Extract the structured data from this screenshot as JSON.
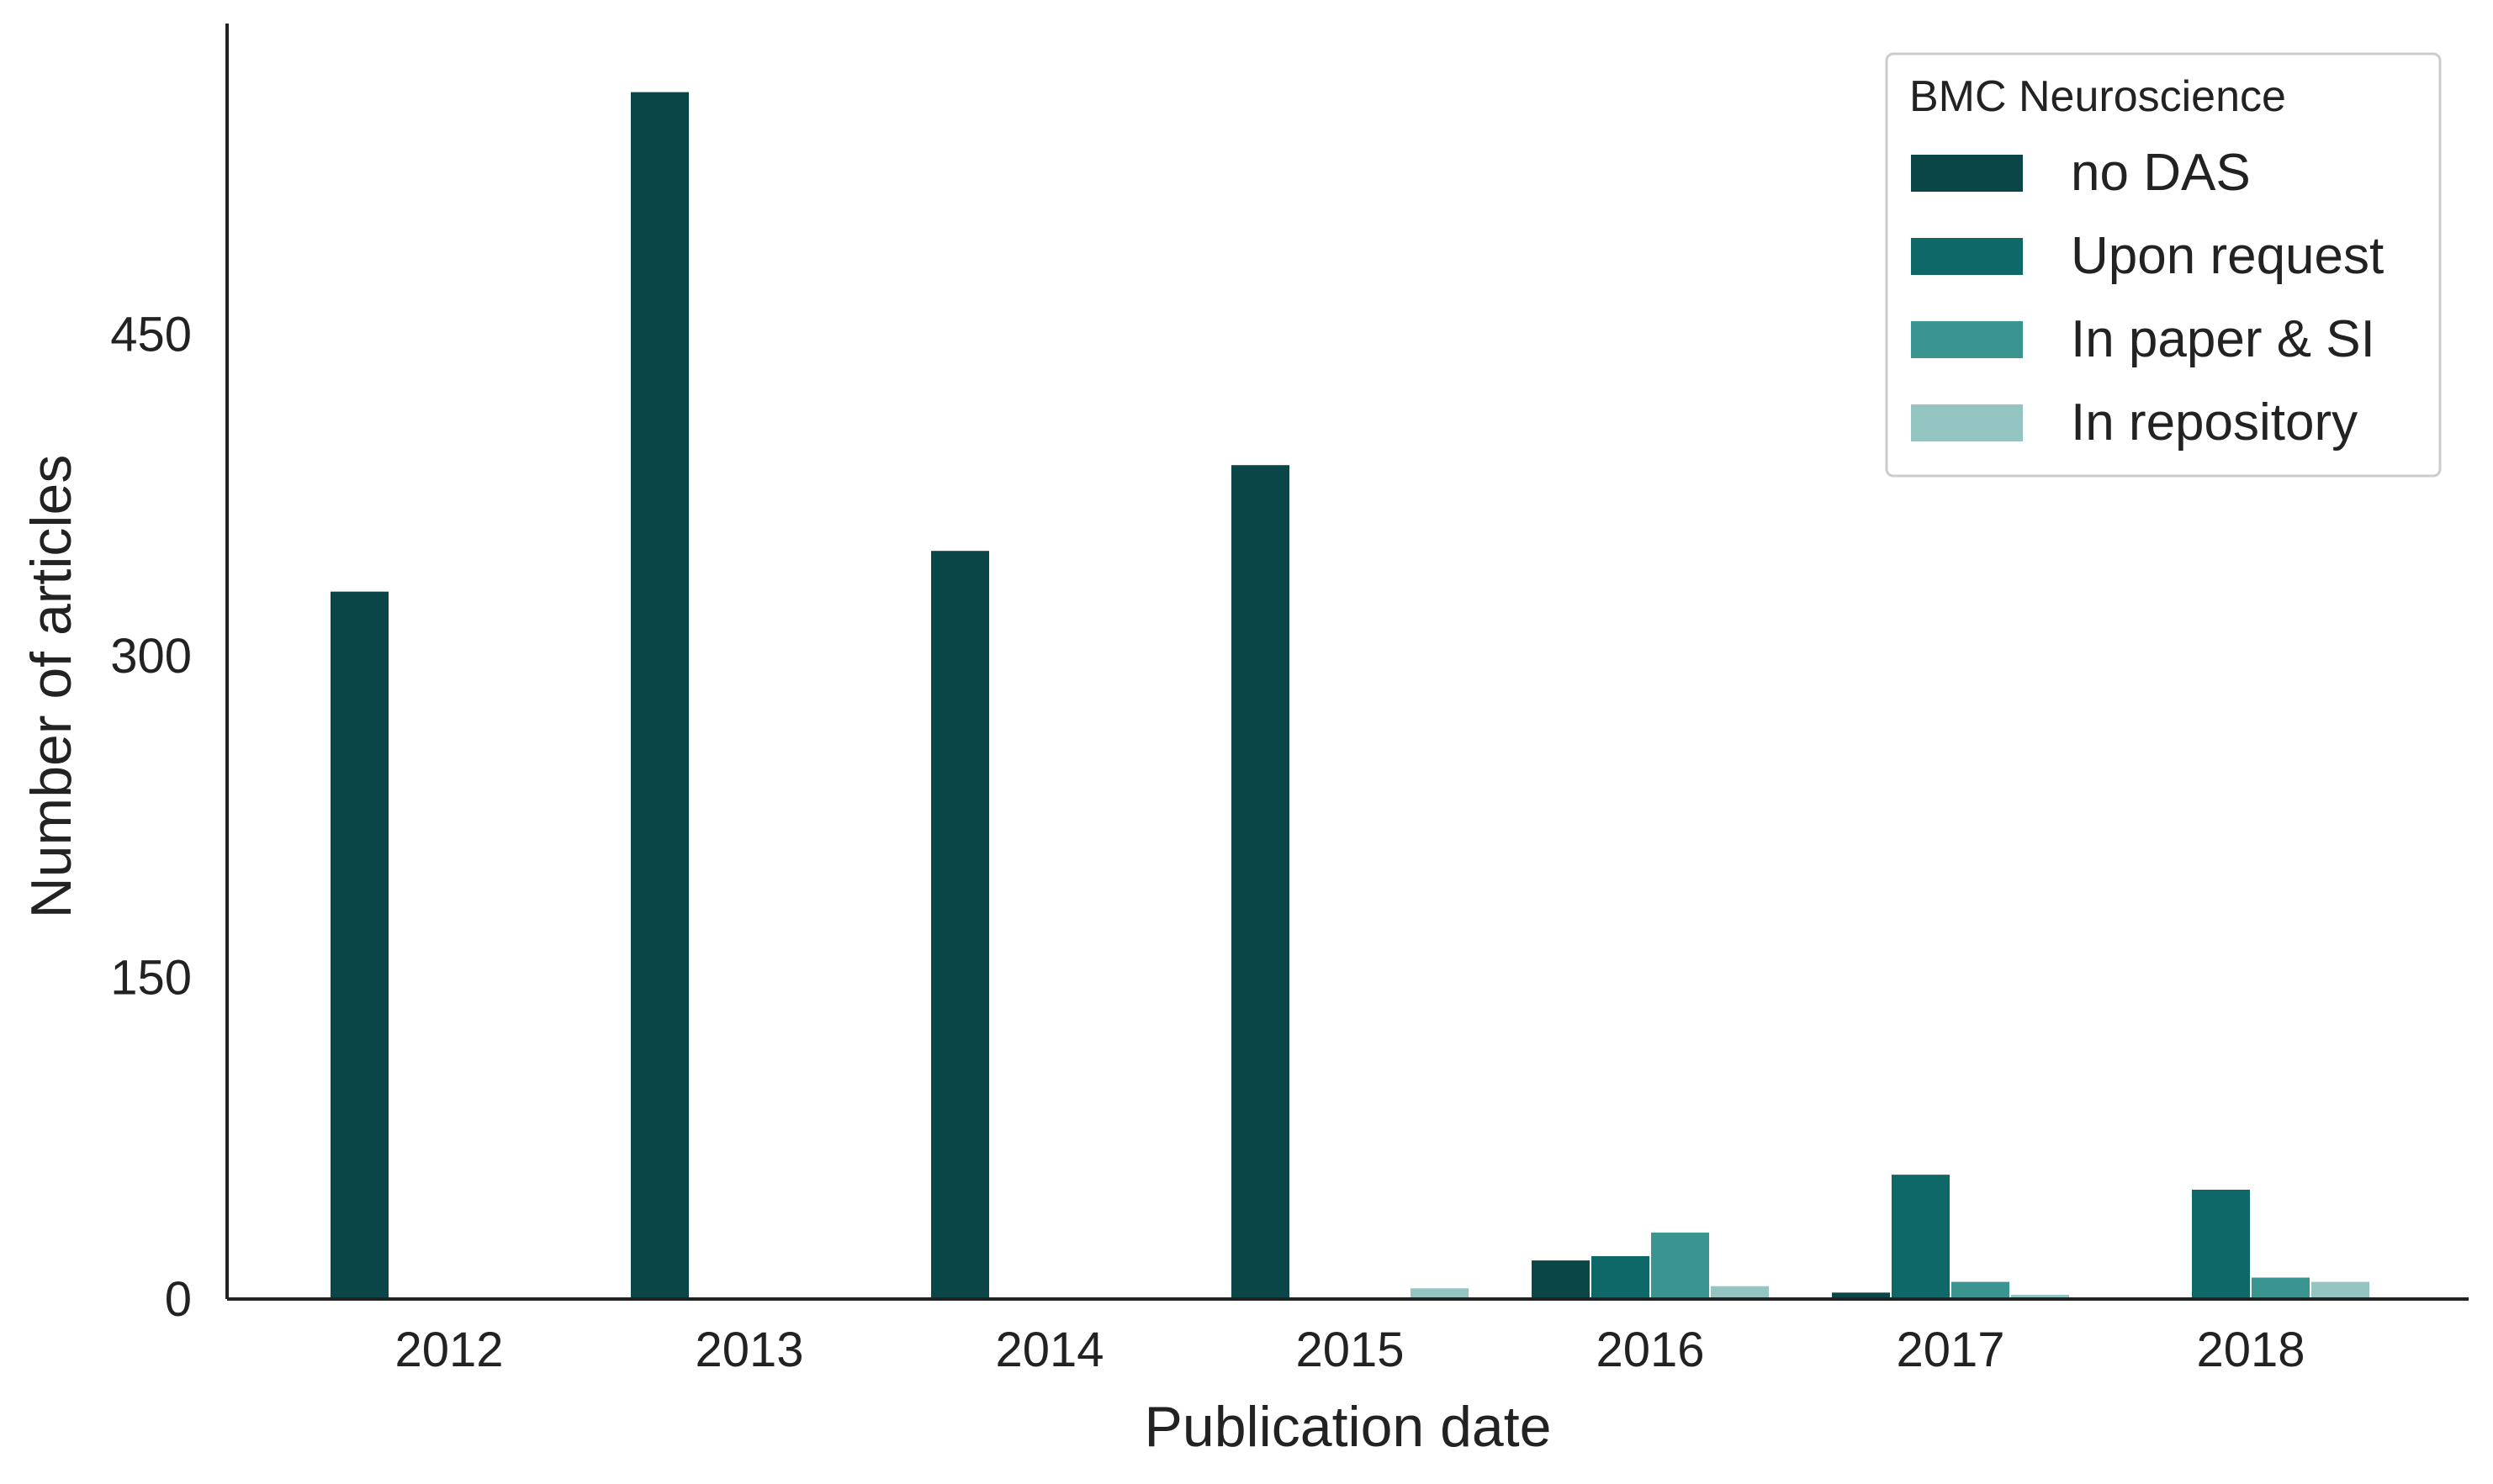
{
  "chart_data": {
    "type": "bar",
    "title": "",
    "xlabel": "Publication date",
    "ylabel": "Number of articles",
    "categories": [
      "2012",
      "2013",
      "2014",
      "2015",
      "2016",
      "2017",
      "2018"
    ],
    "ylim": [
      0,
      595
    ],
    "yticks": [
      0,
      150,
      300,
      450
    ],
    "grid": false,
    "legend": {
      "title": "BMC Neuroscience",
      "placement": "top-right"
    },
    "series": [
      {
        "name": "no DAS",
        "color": "#0a4648",
        "values": [
          330,
          563,
          349,
          389,
          18,
          3,
          0
        ]
      },
      {
        "name": "Upon request",
        "color": "#0f6868",
        "values": [
          0,
          0,
          0,
          0,
          20,
          58,
          51
        ]
      },
      {
        "name": "In paper & SI",
        "color": "#3a948f",
        "values": [
          0,
          0,
          0,
          0,
          31,
          8,
          10
        ]
      },
      {
        "name": "In repository",
        "color": "#95c5c2",
        "values": [
          0,
          0,
          0,
          5,
          6,
          2,
          8
        ]
      }
    ]
  }
}
